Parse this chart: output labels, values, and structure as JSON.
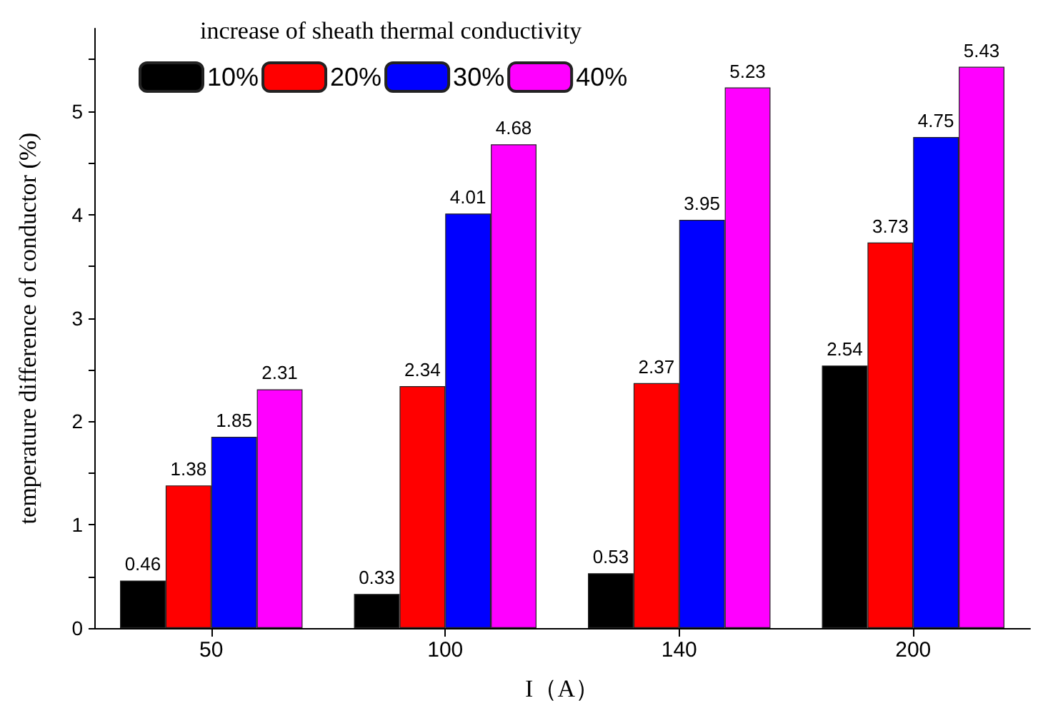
{
  "chart_data": {
    "type": "bar",
    "xlabel": "I（A）",
    "ylabel": "temperature difference of conductor (%)",
    "legend_title": "increase of sheath thermal conductivity",
    "categories": [
      "50",
      "100",
      "140",
      "200"
    ],
    "series": [
      {
        "name": "10%",
        "color": "#000000",
        "values": [
          0.46,
          0.33,
          0.53,
          2.54
        ]
      },
      {
        "name": "20%",
        "color": "#ff0000",
        "values": [
          1.38,
          2.34,
          2.37,
          3.73
        ]
      },
      {
        "name": "30%",
        "color": "#0000ff",
        "values": [
          1.85,
          4.01,
          3.95,
          4.75
        ]
      },
      {
        "name": "40%",
        "color": "#ff00ff",
        "values": [
          2.31,
          4.68,
          5.23,
          5.43
        ]
      }
    ],
    "ylim": [
      0,
      5.8
    ],
    "yticks": [
      0,
      {
        "value": 0.5,
        "label": null
      },
      1,
      {
        "value": 1.5,
        "label": null
      },
      2,
      {
        "value": 2.5,
        "label": null
      },
      3,
      {
        "value": 3.5,
        "label": null
      },
      4,
      {
        "value": 4.5,
        "label": null
      },
      5,
      {
        "value": 5.5,
        "label": null
      }
    ],
    "data_labels": true,
    "grid": false,
    "legend": "top left"
  }
}
